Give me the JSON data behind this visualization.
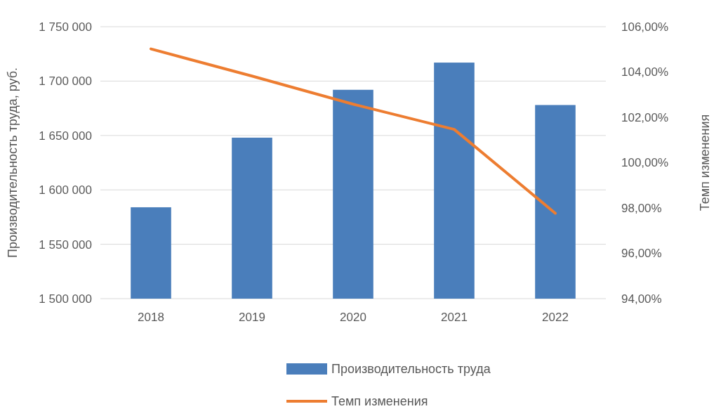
{
  "chart_data": {
    "type": "bar",
    "categories": [
      "2018",
      "2019",
      "2020",
      "2021",
      "2022"
    ],
    "series": [
      {
        "name": "Производительность труда",
        "color": "#4a7ebb",
        "values": [
          1584000,
          1648000,
          1692000,
          1717000,
          1678000
        ]
      },
      {
        "name": "Темп изменения",
        "type": "line",
        "axis": "y2",
        "color": "#ed7d31",
        "values": [
          105.02,
          103.82,
          102.58,
          101.47,
          97.77
        ]
      }
    ],
    "ylabel": "Производительность труда, руб.",
    "y2label": "Темп изменения",
    "ylim": [
      1500000,
      1750000
    ],
    "yticks": [
      {
        "value": 1500000,
        "label": "1 500 000"
      },
      {
        "value": 1550000,
        "label": "1 550 000"
      },
      {
        "value": 1600000,
        "label": "1 600 000"
      },
      {
        "value": 1650000,
        "label": "1 650 000"
      },
      {
        "value": 1700000,
        "label": "1 700 000"
      },
      {
        "value": 1750000,
        "label": "1 750 000"
      }
    ],
    "y2lim": [
      94,
      106
    ],
    "y2ticks": [
      {
        "value": 94,
        "label": "94,00%"
      },
      {
        "value": 96,
        "label": "96,00%"
      },
      {
        "value": 98,
        "label": "98,00%"
      },
      {
        "value": 100,
        "label": "100,00%"
      },
      {
        "value": 102,
        "label": "102,00%"
      },
      {
        "value": 104,
        "label": "104,00%"
      },
      {
        "value": 106,
        "label": "106,00%"
      }
    ],
    "grid": "y",
    "legend": "bottom",
    "marker": "none",
    "line_style": "solid"
  }
}
